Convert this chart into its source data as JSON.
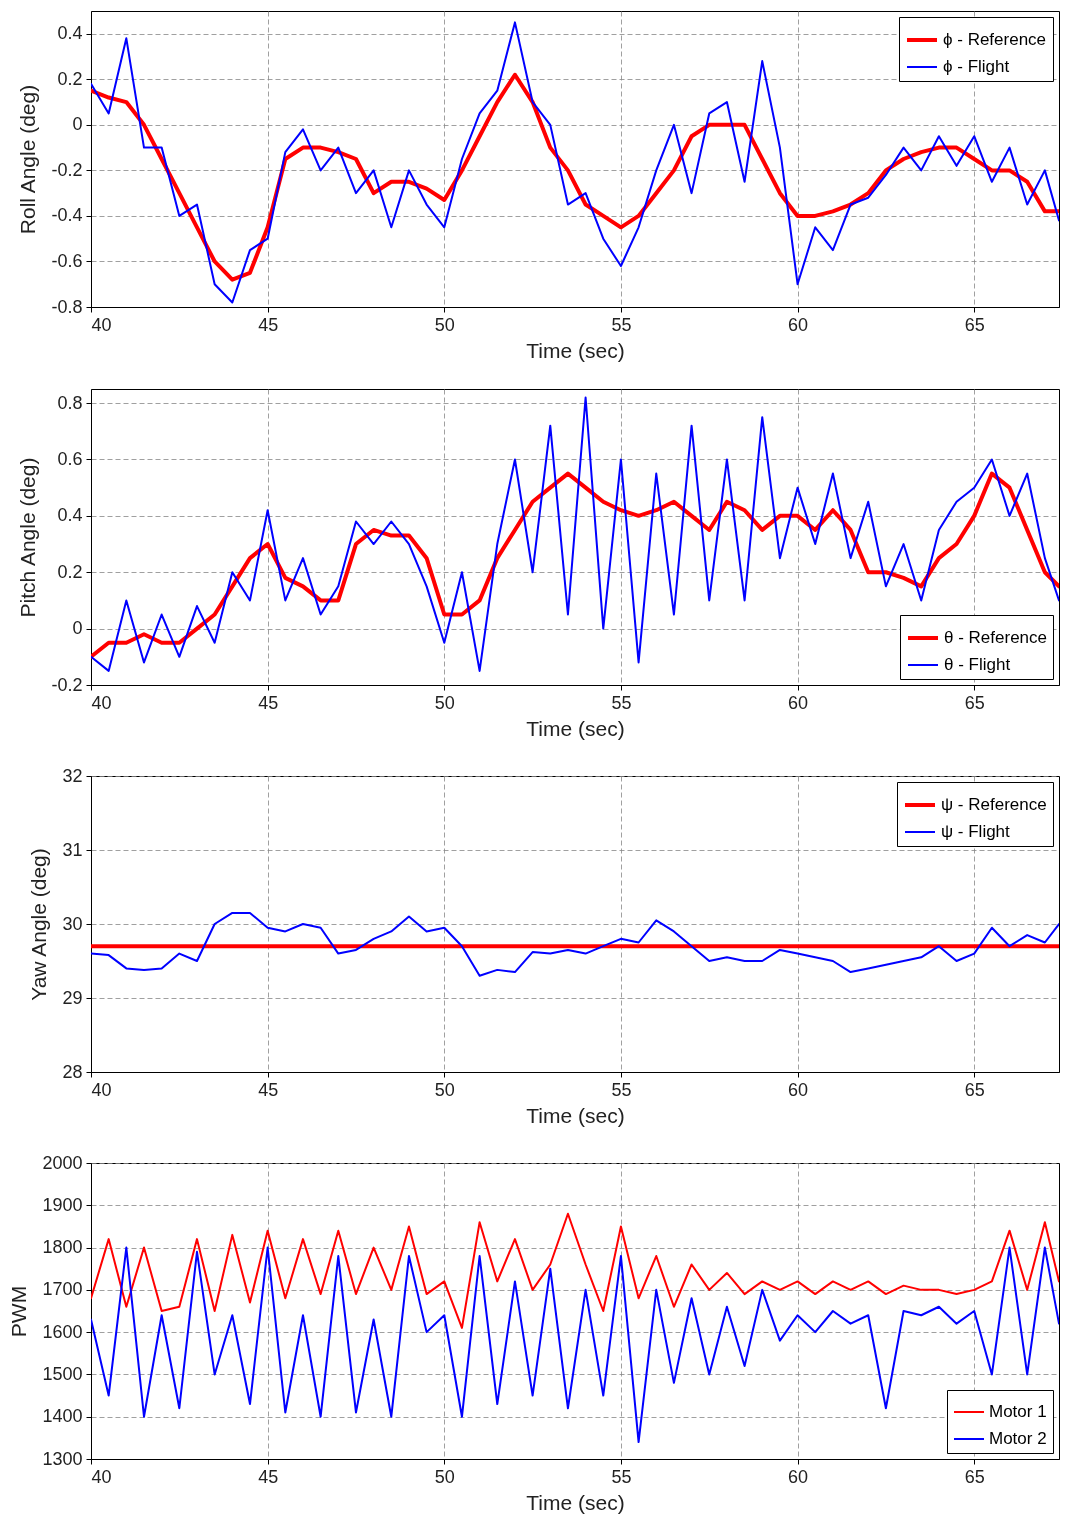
{
  "chart_data": [
    {
      "type": "line",
      "xlabel": "Time (sec)",
      "ylabel": "Roll Angle (deg)",
      "xlim": [
        40,
        67.4
      ],
      "xticks": [
        40,
        45,
        50,
        55,
        60,
        65
      ],
      "ylim": [
        -0.8,
        0.5
      ],
      "yticks": [
        -0.8,
        -0.6,
        -0.4,
        -0.2,
        0,
        0.2,
        0.4
      ],
      "grid": true,
      "legend": "top right",
      "x": [
        40,
        40.5,
        41,
        41.5,
        42,
        42.5,
        43,
        43.5,
        44,
        44.5,
        45,
        45.5,
        46,
        46.5,
        47,
        47.5,
        48,
        48.5,
        49,
        49.5,
        50,
        50.5,
        51,
        51.5,
        52,
        52.5,
        53,
        53.5,
        54,
        54.5,
        55,
        55.5,
        56,
        56.5,
        57,
        57.5,
        58,
        58.5,
        59,
        59.5,
        60,
        60.5,
        61,
        61.5,
        62,
        62.5,
        63,
        63.5,
        64,
        64.5,
        65,
        65.5,
        66,
        66.5,
        67,
        67.4
      ],
      "series": [
        {
          "name": "ϕ - Reference",
          "color": "#ff0000",
          "values": [
            0.15,
            0.12,
            0.1,
            0.0,
            -0.15,
            -0.3,
            -0.45,
            -0.6,
            -0.68,
            -0.65,
            -0.45,
            -0.15,
            -0.1,
            -0.1,
            -0.12,
            -0.15,
            -0.3,
            -0.25,
            -0.25,
            -0.28,
            -0.33,
            -0.2,
            -0.05,
            0.1,
            0.22,
            0.1,
            -0.1,
            -0.2,
            -0.35,
            -0.4,
            -0.45,
            -0.4,
            -0.3,
            -0.2,
            -0.05,
            0.0,
            0.0,
            0.0,
            -0.15,
            -0.3,
            -0.4,
            -0.4,
            -0.38,
            -0.35,
            -0.3,
            -0.2,
            -0.15,
            -0.12,
            -0.1,
            -0.1,
            -0.15,
            -0.2,
            -0.2,
            -0.25,
            -0.38,
            -0.38
          ]
        },
        {
          "name": "ϕ - Flight",
          "color": "#0000ff",
          "values": [
            0.18,
            0.05,
            0.38,
            -0.1,
            -0.1,
            -0.4,
            -0.35,
            -0.7,
            -0.78,
            -0.55,
            -0.5,
            -0.12,
            -0.02,
            -0.2,
            -0.1,
            -0.3,
            -0.2,
            -0.45,
            -0.2,
            -0.35,
            -0.45,
            -0.15,
            0.05,
            0.15,
            0.45,
            0.1,
            0.0,
            -0.35,
            -0.3,
            -0.5,
            -0.62,
            -0.45,
            -0.2,
            0.0,
            -0.3,
            0.05,
            0.1,
            -0.25,
            0.28,
            -0.1,
            -0.7,
            -0.45,
            -0.55,
            -0.35,
            -0.32,
            -0.22,
            -0.1,
            -0.2,
            -0.05,
            -0.18,
            -0.05,
            -0.25,
            -0.1,
            -0.35,
            -0.2,
            -0.42
          ]
        }
      ]
    },
    {
      "type": "line",
      "xlabel": "Time (sec)",
      "ylabel": "Pitch Angle (deg)",
      "xlim": [
        40,
        67.4
      ],
      "xticks": [
        40,
        45,
        50,
        55,
        60,
        65
      ],
      "ylim": [
        -0.2,
        0.85
      ],
      "yticks": [
        -0.2,
        0,
        0.2,
        0.4,
        0.6,
        0.8
      ],
      "grid": true,
      "legend": "bottom right",
      "x": [
        40,
        40.5,
        41,
        41.5,
        42,
        42.5,
        43,
        43.5,
        44,
        44.5,
        45,
        45.5,
        46,
        46.5,
        47,
        47.5,
        48,
        48.5,
        49,
        49.5,
        50,
        50.5,
        51,
        51.5,
        52,
        52.5,
        53,
        53.5,
        54,
        54.5,
        55,
        55.5,
        56,
        56.5,
        57,
        57.5,
        58,
        58.5,
        59,
        59.5,
        60,
        60.5,
        61,
        61.5,
        62,
        62.5,
        63,
        63.5,
        64,
        64.5,
        65,
        65.5,
        66,
        66.5,
        67,
        67.4
      ],
      "series": [
        {
          "name": "θ - Reference",
          "color": "#ff0000",
          "values": [
            -0.1,
            -0.05,
            -0.05,
            -0.02,
            -0.05,
            -0.05,
            0.0,
            0.05,
            0.15,
            0.25,
            0.3,
            0.18,
            0.15,
            0.1,
            0.1,
            0.3,
            0.35,
            0.33,
            0.33,
            0.25,
            0.05,
            0.05,
            0.1,
            0.25,
            0.35,
            0.45,
            0.5,
            0.55,
            0.5,
            0.45,
            0.42,
            0.4,
            0.42,
            0.45,
            0.4,
            0.35,
            0.45,
            0.42,
            0.35,
            0.4,
            0.4,
            0.35,
            0.42,
            0.35,
            0.2,
            0.2,
            0.18,
            0.15,
            0.25,
            0.3,
            0.4,
            0.55,
            0.5,
            0.35,
            0.2,
            0.15
          ]
        },
        {
          "name": "θ - Flight",
          "color": "#0000ff",
          "values": [
            -0.1,
            -0.15,
            0.1,
            -0.12,
            0.05,
            -0.1,
            0.08,
            -0.05,
            0.2,
            0.1,
            0.42,
            0.1,
            0.25,
            0.05,
            0.15,
            0.38,
            0.3,
            0.38,
            0.3,
            0.15,
            -0.05,
            0.2,
            -0.15,
            0.3,
            0.6,
            0.2,
            0.72,
            0.05,
            0.82,
            0.0,
            0.6,
            -0.12,
            0.55,
            0.05,
            0.72,
            0.1,
            0.6,
            0.1,
            0.75,
            0.25,
            0.5,
            0.3,
            0.55,
            0.25,
            0.45,
            0.15,
            0.3,
            0.1,
            0.35,
            0.45,
            0.5,
            0.6,
            0.4,
            0.55,
            0.25,
            0.1
          ]
        }
      ]
    },
    {
      "type": "line",
      "xlabel": "Time (sec)",
      "ylabel": "Yaw Angle (deg)",
      "xlim": [
        40,
        67.4
      ],
      "xticks": [
        40,
        45,
        50,
        55,
        60,
        65
      ],
      "ylim": [
        28,
        32
      ],
      "yticks": [
        28,
        29,
        30,
        31,
        32
      ],
      "grid": true,
      "legend": "top right",
      "x": [
        40,
        40.5,
        41,
        41.5,
        42,
        42.5,
        43,
        43.5,
        44,
        44.5,
        45,
        45.5,
        46,
        46.5,
        47,
        47.5,
        48,
        48.5,
        49,
        49.5,
        50,
        50.5,
        51,
        51.5,
        52,
        52.5,
        53,
        53.5,
        54,
        54.5,
        55,
        55.5,
        56,
        56.5,
        57,
        57.5,
        58,
        58.5,
        59,
        59.5,
        60,
        60.5,
        61,
        61.5,
        62,
        62.5,
        63,
        63.5,
        64,
        64.5,
        65,
        65.5,
        66,
        66.5,
        67,
        67.4
      ],
      "series": [
        {
          "name": "ψ - Reference",
          "color": "#ff0000",
          "values": [
            29.7,
            29.7,
            29.7,
            29.7,
            29.7,
            29.7,
            29.7,
            29.7,
            29.7,
            29.7,
            29.7,
            29.7,
            29.7,
            29.7,
            29.7,
            29.7,
            29.7,
            29.7,
            29.7,
            29.7,
            29.7,
            29.7,
            29.7,
            29.7,
            29.7,
            29.7,
            29.7,
            29.7,
            29.7,
            29.7,
            29.7,
            29.7,
            29.7,
            29.7,
            29.7,
            29.7,
            29.7,
            29.7,
            29.7,
            29.7,
            29.7,
            29.7,
            29.7,
            29.7,
            29.7,
            29.7,
            29.7,
            29.7,
            29.7,
            29.7,
            29.7,
            29.7,
            29.7,
            29.7,
            29.7,
            29.7
          ]
        },
        {
          "name": "ψ - Flight",
          "color": "#0000ff",
          "values": [
            29.6,
            29.58,
            29.4,
            29.38,
            29.4,
            29.6,
            29.5,
            30.0,
            30.15,
            30.15,
            29.95,
            29.9,
            30.0,
            29.95,
            29.6,
            29.65,
            29.8,
            29.9,
            30.1,
            29.9,
            29.95,
            29.7,
            29.3,
            29.38,
            29.35,
            29.62,
            29.6,
            29.65,
            29.6,
            29.7,
            29.8,
            29.75,
            30.05,
            29.9,
            29.7,
            29.5,
            29.55,
            29.5,
            29.5,
            29.65,
            29.6,
            29.55,
            29.5,
            29.35,
            29.4,
            29.45,
            29.5,
            29.55,
            29.7,
            29.5,
            29.6,
            29.95,
            29.7,
            29.85,
            29.75,
            30.0
          ]
        }
      ]
    },
    {
      "type": "line",
      "xlabel": "Time (sec)",
      "ylabel": "PWM",
      "xlim": [
        40,
        67.4
      ],
      "xticks": [
        40,
        45,
        50,
        55,
        60,
        65
      ],
      "ylim": [
        1300,
        2000
      ],
      "yticks": [
        1300,
        1400,
        1500,
        1600,
        1700,
        1800,
        1900,
        2000
      ],
      "grid": true,
      "legend": "bottom right",
      "x": [
        40,
        40.5,
        41,
        41.5,
        42,
        42.5,
        43,
        43.5,
        44,
        44.5,
        45,
        45.5,
        46,
        46.5,
        47,
        47.5,
        48,
        48.5,
        49,
        49.5,
        50,
        50.5,
        51,
        51.5,
        52,
        52.5,
        53,
        53.5,
        54,
        54.5,
        55,
        55.5,
        56,
        56.5,
        57,
        57.5,
        58,
        58.5,
        59,
        59.5,
        60,
        60.5,
        61,
        61.5,
        62,
        62.5,
        63,
        63.5,
        64,
        64.5,
        65,
        65.5,
        66,
        66.5,
        67,
        67.4
      ],
      "series": [
        {
          "name": "Motor 1",
          "color": "#ff0000",
          "values": [
            1680,
            1820,
            1660,
            1800,
            1650,
            1660,
            1820,
            1650,
            1830,
            1670,
            1840,
            1680,
            1820,
            1690,
            1840,
            1690,
            1800,
            1700,
            1850,
            1690,
            1720,
            1610,
            1860,
            1720,
            1820,
            1700,
            1760,
            1880,
            1760,
            1650,
            1850,
            1680,
            1780,
            1660,
            1760,
            1700,
            1740,
            1690,
            1720,
            1700,
            1720,
            1690,
            1720,
            1700,
            1720,
            1690,
            1710,
            1700,
            1700,
            1690,
            1700,
            1720,
            1840,
            1700,
            1860,
            1720
          ]
        },
        {
          "name": "Motor 2",
          "color": "#0000ff",
          "values": [
            1630,
            1450,
            1800,
            1400,
            1640,
            1420,
            1790,
            1500,
            1640,
            1430,
            1800,
            1410,
            1640,
            1400,
            1780,
            1410,
            1630,
            1400,
            1780,
            1600,
            1640,
            1400,
            1780,
            1430,
            1720,
            1450,
            1750,
            1420,
            1700,
            1450,
            1780,
            1340,
            1700,
            1480,
            1680,
            1500,
            1660,
            1520,
            1700,
            1580,
            1640,
            1600,
            1650,
            1620,
            1640,
            1420,
            1650,
            1640,
            1660,
            1620,
            1650,
            1500,
            1800,
            1500,
            1800,
            1620
          ]
        }
      ]
    }
  ]
}
